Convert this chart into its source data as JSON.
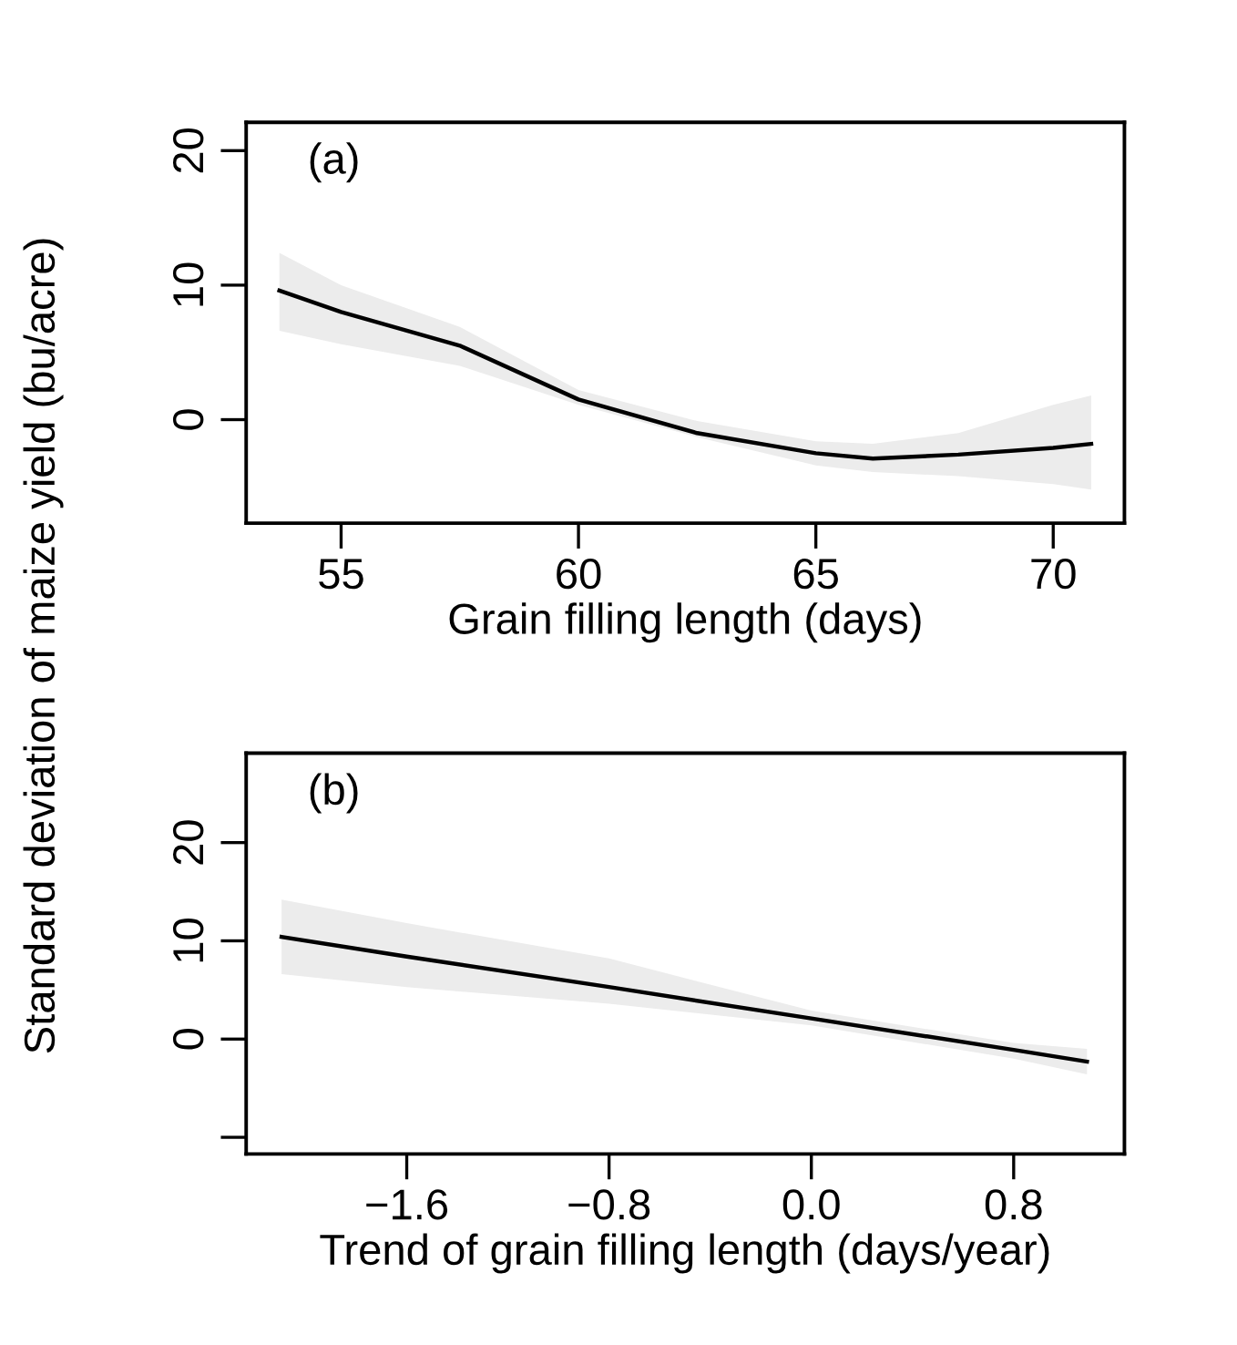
{
  "chart_data": [
    {
      "type": "line",
      "xlabel": "Grain filling length (days)",
      "ylabel": "Standard deviation of maize yield (bu/acre)",
      "annotations": [
        "(a)"
      ],
      "xlim": [
        53.0,
        71.5
      ],
      "ylim": [
        -7.7,
        22.1
      ],
      "xticks": [
        55,
        60,
        65,
        70
      ],
      "yticks": [
        0,
        10,
        20
      ],
      "grid": false,
      "legend": false,
      "series": [
        {
          "color": "#000000",
          "x": [
            53.7,
            55,
            57.5,
            60,
            62.5,
            65,
            66.2,
            68,
            70,
            70.8
          ],
          "values": [
            9.6,
            8.0,
            5.5,
            1.5,
            -1.0,
            -2.5,
            -2.9,
            -2.6,
            -2.1,
            -1.8
          ],
          "upper": [
            12.4,
            10.0,
            6.9,
            2.2,
            -0.1,
            -1.6,
            -1.8,
            -1.0,
            1.1,
            1.8
          ],
          "lower": [
            6.6,
            5.6,
            4.0,
            1.1,
            -1.3,
            -3.4,
            -3.9,
            -4.2,
            -4.8,
            -5.2
          ]
        }
      ]
    },
    {
      "type": "line",
      "xlabel": "Trend of grain filling length (days/year)",
      "annotations": [
        "(b)"
      ],
      "xlim": [
        -2.235,
        1.238
      ],
      "ylim": [
        -11.7,
        29.1
      ],
      "xticks": [
        {
          "value": -1.6,
          "label": "−1.6"
        },
        {
          "value": -0.8,
          "label": "−0.8"
        },
        {
          "value": 0,
          "label": "0.0"
        },
        {
          "value": 0.8,
          "label": "0.8"
        }
      ],
      "yticks": [
        {
          "value": -10,
          "label": null
        },
        0,
        10,
        20
      ],
      "grid": false,
      "legend": false,
      "series": [
        {
          "color": "#000000",
          "x": [
            -2.095,
            -1.6,
            -0.8,
            0,
            0.8,
            1.09
          ],
          "values": [
            10.4,
            8.4,
            5.3,
            2.1,
            -1.1,
            -2.3
          ],
          "upper": [
            14.2,
            11.8,
            8.2,
            2.9,
            -0.4,
            -1.0
          ],
          "lower": [
            6.6,
            5.3,
            3.6,
            1.4,
            -2.0,
            -3.6
          ]
        }
      ]
    }
  ]
}
